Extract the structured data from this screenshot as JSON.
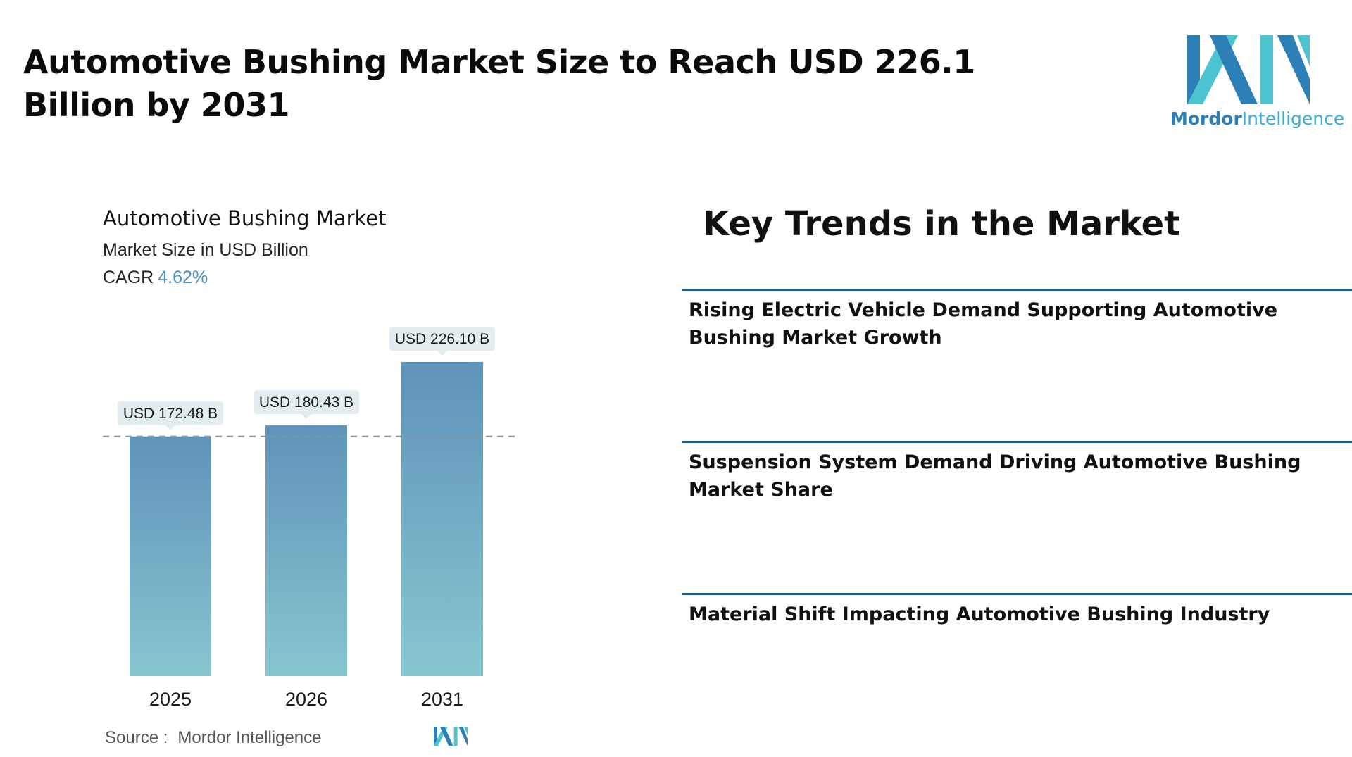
{
  "headline": "Automotive Bushing Market Size to Reach USD 226.1 Billion by 2031",
  "logo": {
    "word1": "Mordor",
    "word2": "Intelligence"
  },
  "chart": {
    "title": "Automotive Bushing Market",
    "subtitle": "Market Size in USD Billion",
    "cagr_label": "CAGR",
    "cagr_value": "4.62%"
  },
  "chart_data": {
    "type": "bar",
    "categories": [
      "2025",
      "2026",
      "2031"
    ],
    "values": [
      172.48,
      180.43,
      226.1
    ],
    "data_labels": [
      "USD 172.48 B",
      "USD 180.43 B",
      "USD 226.10 B"
    ],
    "title": "Automotive Bushing Market",
    "ylabel": "Market Size in USD Billion",
    "reference_line": 172.48,
    "grid": false,
    "colors": {
      "bar_top": "#5f93ba",
      "bar_bottom": "#86c6cf",
      "label_bg": "#e3edf0",
      "ref_line": "#7f95a6"
    }
  },
  "source": {
    "key": "Source :",
    "value": "Mordor Intelligence"
  },
  "trends": {
    "title": "Key Trends in the Market",
    "items": [
      "Rising Electric Vehicle Demand Supporting Automotive Bushing Market Growth",
      "Suspension System Demand Driving Automotive Bushing Market Share",
      "Material Shift Impacting Automotive Bushing Industry"
    ]
  },
  "colors": {
    "brand_dark": "#2d7fb8",
    "brand_light": "#4dc3cf",
    "divider": "#215f86"
  }
}
